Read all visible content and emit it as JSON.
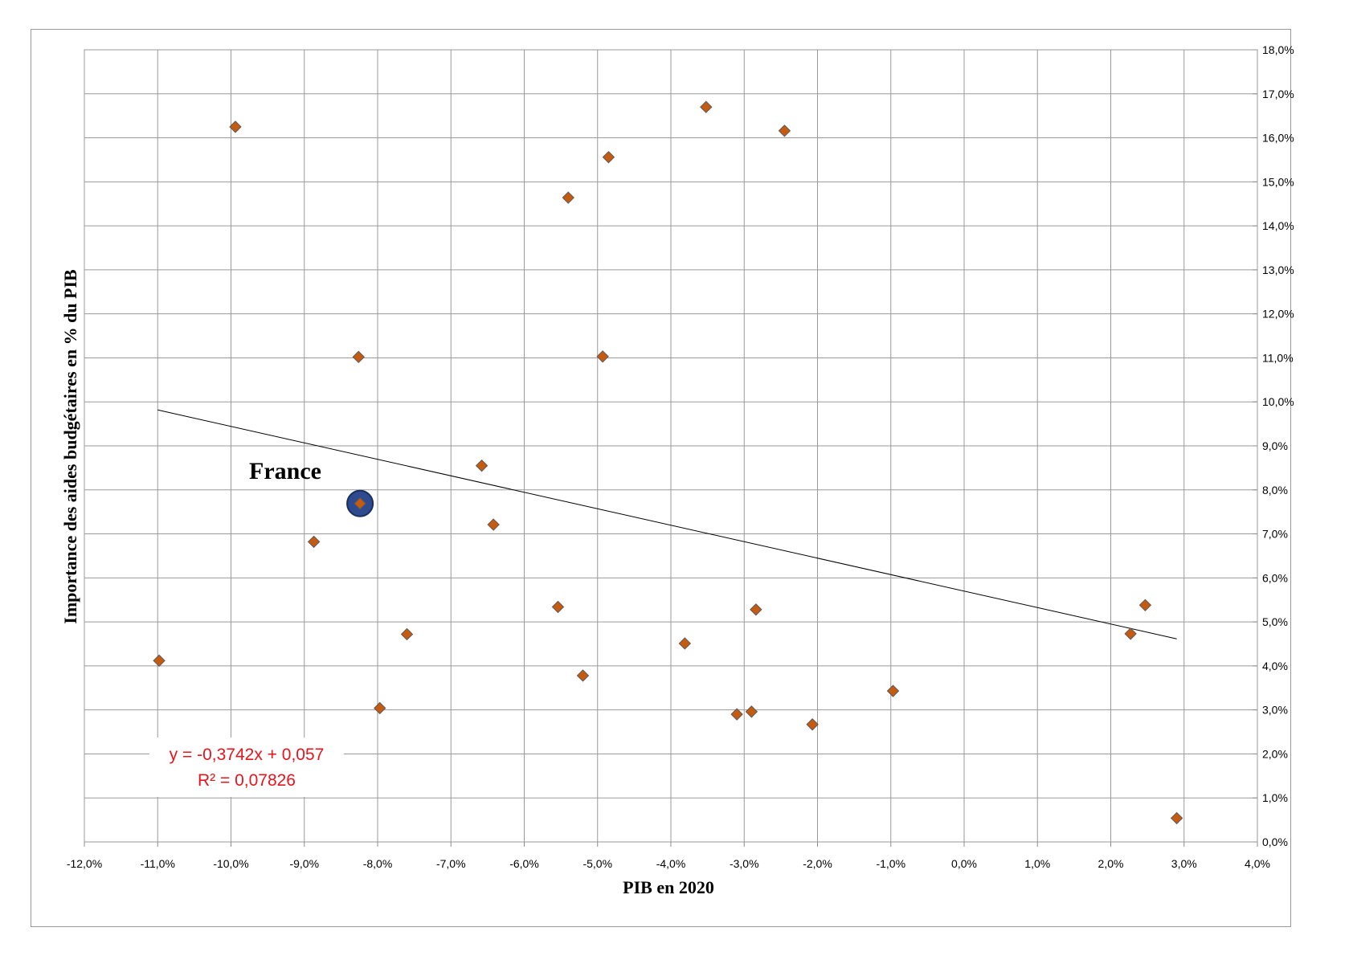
{
  "chart_data": {
    "type": "scatter",
    "xlabel": "PIB en 2020",
    "ylabel": "Importance des aides budgétaires en % du PIB",
    "xlim": [
      -12,
      4
    ],
    "ylim": [
      0,
      18
    ],
    "x_ticks": [
      "-12,0%",
      "-11,0%",
      "-10,0%",
      "-9,0%",
      "-8,0%",
      "-7,0%",
      "-6,0%",
      "-5,0%",
      "-4,0%",
      "-3,0%",
      "-2,0%",
      "-1,0%",
      "0,0%",
      "1,0%",
      "2,0%",
      "3,0%",
      "4,0%"
    ],
    "y_ticks": [
      "0,0%",
      "1,0%",
      "2,0%",
      "3,0%",
      "4,0%",
      "5,0%",
      "6,0%",
      "7,0%",
      "8,0%",
      "9,0%",
      "10,0%",
      "11,0%",
      "12,0%",
      "13,0%",
      "14,0%",
      "15,0%",
      "16,0%",
      "17,0%",
      "18,0%"
    ],
    "y_axis_position": "right",
    "grid": true,
    "marker_color": "#c55a11",
    "highlight_color": "#2e4b8f",
    "points": [
      {
        "x": -10.98,
        "y": 4.12
      },
      {
        "x": -9.94,
        "y": 16.25
      },
      {
        "x": -8.87,
        "y": 6.82
      },
      {
        "x": -8.26,
        "y": 11.02
      },
      {
        "x": -8.24,
        "y": 7.69,
        "highlight": true
      },
      {
        "x": -7.97,
        "y": 3.04
      },
      {
        "x": -7.6,
        "y": 4.72
      },
      {
        "x": -6.58,
        "y": 8.55
      },
      {
        "x": -6.42,
        "y": 7.21
      },
      {
        "x": -5.54,
        "y": 5.34
      },
      {
        "x": -5.4,
        "y": 14.64
      },
      {
        "x": -5.2,
        "y": 3.78
      },
      {
        "x": -4.93,
        "y": 11.03
      },
      {
        "x": -4.85,
        "y": 15.56
      },
      {
        "x": -3.81,
        "y": 4.51
      },
      {
        "x": -3.52,
        "y": 16.7
      },
      {
        "x": -3.1,
        "y": 2.9
      },
      {
        "x": -2.9,
        "y": 2.96
      },
      {
        "x": -2.84,
        "y": 5.28
      },
      {
        "x": -2.45,
        "y": 16.16
      },
      {
        "x": -2.07,
        "y": 2.67
      },
      {
        "x": -0.97,
        "y": 3.43
      },
      {
        "x": 2.27,
        "y": 4.73
      },
      {
        "x": 2.47,
        "y": 5.38
      },
      {
        "x": 2.9,
        "y": 0.54
      }
    ],
    "trendline": {
      "slope": -0.3742,
      "intercept": 5.7,
      "x_range": [
        -11,
        2.9
      ]
    },
    "annotations": {
      "highlight_label": "France",
      "equation": "y = -0,3742x + 0,057",
      "r_squared": "R² = 0,07826"
    }
  }
}
